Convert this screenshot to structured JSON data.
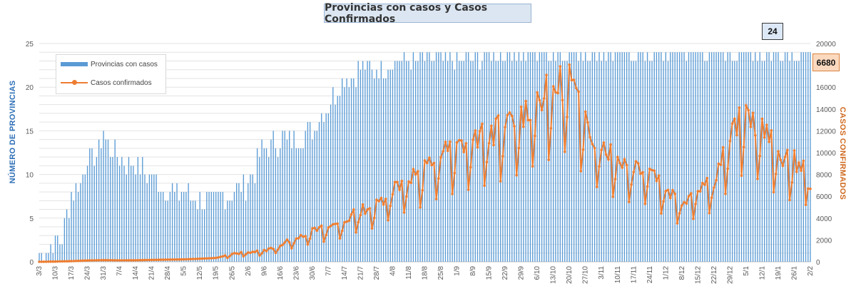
{
  "chart_data": {
    "type": "bar",
    "title": "Provincias con casos y Casos Confirmados",
    "ylabel": "NÚMERO DE PROVINCIAS",
    "y2label": "CASOS CONFIRMADOS",
    "ylim": [
      0,
      25
    ],
    "yticks": [
      0,
      5,
      10,
      15,
      20,
      25
    ],
    "y2lim": [
      0,
      20000
    ],
    "y2ticks": [
      0,
      2000,
      4000,
      6000,
      8000,
      10000,
      12000,
      14000,
      16000,
      18000,
      20000
    ],
    "xticks": [
      "3/3",
      "10/3",
      "17/3",
      "24/3",
      "31/3",
      "7/4",
      "14/4",
      "21/4",
      "28/4",
      "5/5",
      "12/5",
      "19/5",
      "26/5",
      "2/6",
      "9/6",
      "16/6",
      "23/6",
      "30/6",
      "7/7",
      "14/7",
      "21/7",
      "28/7",
      "4/8",
      "11/8",
      "18/8",
      "25/8",
      "1/9",
      "8/9",
      "15/9",
      "22/9",
      "29/9",
      "6/10",
      "13/10",
      "20/10",
      "27/10",
      "3/11",
      "10/11",
      "17/11",
      "24/11",
      "1/12",
      "8/12",
      "15/12",
      "22/12",
      "29/12",
      "5/1",
      "12/1",
      "19/1",
      "26/1",
      "2/2"
    ],
    "legend_position": "top-left",
    "grid": true,
    "series": [
      {
        "name": "Provincias con casos",
        "type": "bar",
        "axis": "left",
        "color": "#5b9bd5",
        "anchors": [
          [
            0,
            1
          ],
          [
            7,
            2
          ],
          [
            10,
            3
          ],
          [
            14,
            8
          ],
          [
            18,
            9
          ],
          [
            21,
            12
          ],
          [
            25,
            12
          ],
          [
            28,
            15
          ],
          [
            31,
            13
          ],
          [
            35,
            12
          ],
          [
            38,
            11
          ],
          [
            42,
            11
          ],
          [
            49,
            10
          ],
          [
            56,
            8
          ],
          [
            63,
            8
          ],
          [
            70,
            7
          ],
          [
            77,
            7
          ],
          [
            84,
            8
          ],
          [
            91,
            9
          ],
          [
            98,
            13
          ],
          [
            105,
            14
          ],
          [
            112,
            14
          ],
          [
            119,
            15
          ],
          [
            126,
            18
          ],
          [
            133,
            21
          ],
          [
            140,
            22
          ],
          [
            147,
            22
          ],
          [
            154,
            23
          ],
          [
            161,
            23
          ],
          [
            168,
            23
          ],
          [
            175,
            23
          ],
          [
            182,
            23
          ],
          [
            189,
            23
          ],
          [
            196,
            24
          ],
          [
            203,
            24
          ],
          [
            210,
            24
          ],
          [
            217,
            24
          ],
          [
            224,
            24
          ],
          [
            231,
            24
          ],
          [
            238,
            24
          ],
          [
            245,
            24
          ],
          [
            252,
            24
          ],
          [
            259,
            24
          ],
          [
            266,
            24
          ],
          [
            273,
            24
          ],
          [
            280,
            24
          ],
          [
            287,
            24
          ],
          [
            294,
            24
          ],
          [
            301,
            24
          ],
          [
            308,
            24
          ],
          [
            315,
            24
          ],
          [
            322,
            24
          ],
          [
            329,
            24
          ],
          [
            336,
            24
          ],
          [
            343,
            24
          ]
        ],
        "last_value": 24
      },
      {
        "name": "Casos confirmados",
        "type": "line",
        "axis": "right",
        "color": "#ed7d31",
        "anchors": [
          [
            0,
            0
          ],
          [
            7,
            20
          ],
          [
            14,
            60
          ],
          [
            21,
            120
          ],
          [
            28,
            150
          ],
          [
            35,
            130
          ],
          [
            42,
            140
          ],
          [
            49,
            170
          ],
          [
            56,
            200
          ],
          [
            63,
            220
          ],
          [
            70,
            280
          ],
          [
            77,
            350
          ],
          [
            84,
            700
          ],
          [
            91,
            900
          ],
          [
            98,
            1000
          ],
          [
            105,
            1500
          ],
          [
            112,
            2300
          ],
          [
            119,
            2800
          ],
          [
            126,
            3200
          ],
          [
            133,
            3700
          ],
          [
            140,
            4800
          ],
          [
            147,
            5200
          ],
          [
            154,
            6800
          ],
          [
            161,
            7800
          ],
          [
            168,
            8500
          ],
          [
            175,
            10000
          ],
          [
            182,
            10500
          ],
          [
            189,
            11200
          ],
          [
            196,
            11800
          ],
          [
            203,
            12500
          ],
          [
            210,
            13500
          ],
          [
            217,
            15000
          ],
          [
            224,
            15800
          ],
          [
            231,
            17200
          ],
          [
            238,
            12500
          ],
          [
            245,
            11000
          ],
          [
            252,
            9500
          ],
          [
            259,
            9000
          ],
          [
            266,
            8800
          ],
          [
            273,
            6800
          ],
          [
            280,
            5500
          ],
          [
            287,
            7000
          ],
          [
            294,
            7600
          ],
          [
            301,
            11500
          ],
          [
            308,
            13800
          ],
          [
            315,
            12200
          ],
          [
            322,
            10000
          ],
          [
            329,
            9200
          ],
          [
            336,
            8500
          ],
          [
            343,
            6680
          ]
        ],
        "last_value": 6680
      }
    ]
  },
  "callouts": {
    "provinces": "24",
    "cases": "6680"
  }
}
